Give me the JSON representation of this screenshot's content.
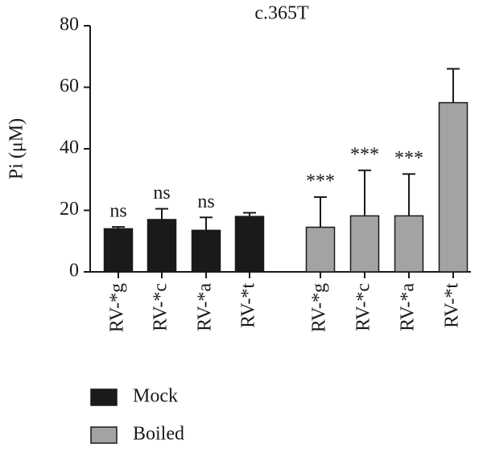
{
  "chart_data": {
    "type": "bar",
    "title": "c.365T",
    "y_label": "Pi (μM)",
    "categories": [
      "RV-*g",
      "RV-*c",
      "RV-*a",
      "RV-*t",
      "RV-*g",
      "RV-*c",
      "RV-*a",
      "RV-*t"
    ],
    "series": [
      {
        "name": "Mock",
        "color": "#1a1a1a",
        "values": [
          14,
          17,
          13.5,
          18,
          null,
          null,
          null,
          null
        ],
        "errors": [
          0.6,
          3.5,
          4.2,
          1.2,
          null,
          null,
          null,
          null
        ]
      },
      {
        "name": "Boiled",
        "color": "#a3a3a3",
        "values": [
          null,
          null,
          null,
          null,
          14.5,
          18.2,
          18.2,
          55
        ],
        "errors": [
          null,
          null,
          null,
          null,
          9.8,
          14.8,
          13.6,
          11
        ]
      }
    ],
    "annotations": [
      "ns",
      "ns",
      "ns",
      null,
      "***",
      "***",
      "***",
      null
    ],
    "ylim": [
      0,
      80
    ],
    "yticks": [
      0,
      20,
      40,
      60,
      80
    ]
  }
}
